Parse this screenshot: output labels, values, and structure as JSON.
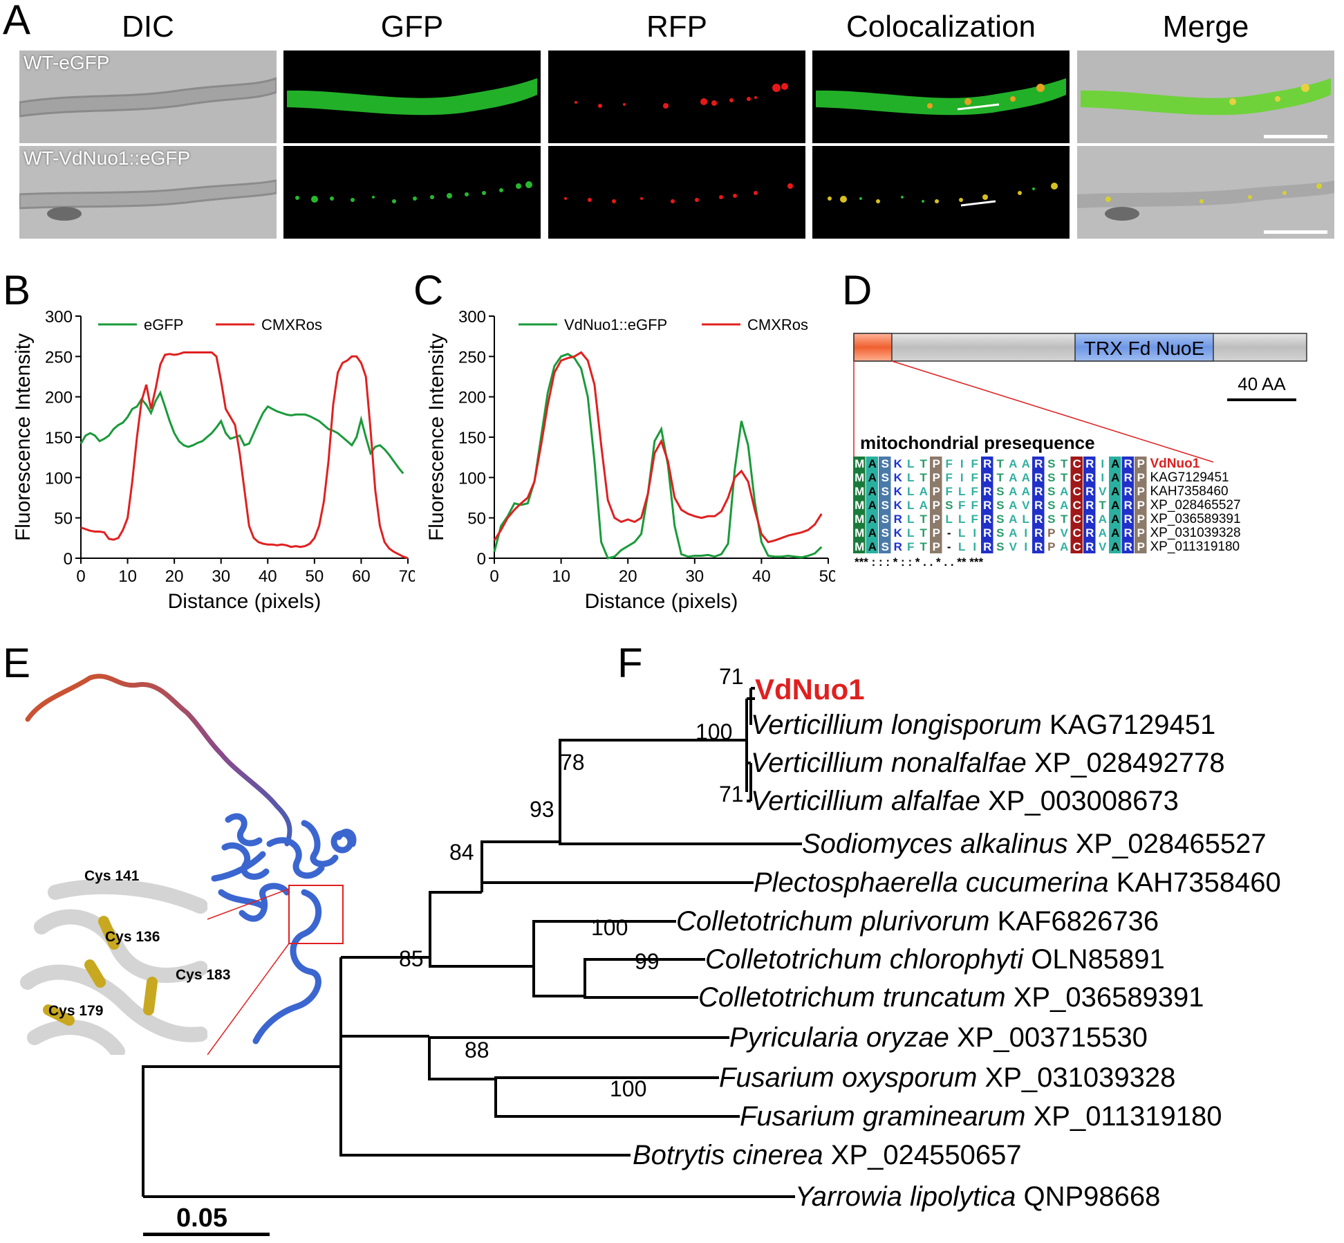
{
  "panels": {
    "A": "A",
    "B": "B",
    "C": "C",
    "D": "D",
    "E": "E",
    "F": "F"
  },
  "panel_a": {
    "columns": [
      "DIC",
      "GFP",
      "RFP",
      "Colocalization",
      "Merge"
    ],
    "rows": [
      "WT-eGFP",
      "WT-VdNuo1::eGFP"
    ]
  },
  "chart_data": [
    {
      "type": "line",
      "panel": "B",
      "xlabel": "Distance (pixels)",
      "ylabel": "Fluorescence Intensity",
      "xlim": [
        0,
        70
      ],
      "ylim": [
        0,
        300
      ],
      "xticks": [
        0,
        10,
        20,
        30,
        40,
        50,
        60,
        70
      ],
      "yticks": [
        0,
        50,
        100,
        150,
        200,
        250,
        300
      ],
      "legend_position": "top",
      "series": [
        {
          "name": "eGFP",
          "color": "#1a9a3a",
          "x": [
            0,
            1,
            2,
            3,
            4,
            5,
            6,
            7,
            8,
            9,
            10,
            11,
            12,
            13,
            14,
            15,
            16,
            17,
            18,
            19,
            20,
            21,
            22,
            23,
            24,
            25,
            26,
            27,
            28,
            29,
            30,
            31,
            32,
            33,
            34,
            35,
            36,
            37,
            38,
            39,
            40,
            41,
            42,
            43,
            44,
            45,
            46,
            47,
            48,
            49,
            50,
            51,
            52,
            53,
            54,
            55,
            56,
            57,
            58,
            59,
            60,
            61,
            62,
            63,
            64,
            65,
            66,
            67,
            68,
            69
          ],
          "values": [
            142,
            152,
            155,
            152,
            145,
            148,
            152,
            160,
            165,
            168,
            175,
            185,
            188,
            197,
            190,
            180,
            195,
            205,
            188,
            170,
            155,
            145,
            140,
            138,
            140,
            143,
            145,
            150,
            155,
            162,
            170,
            155,
            148,
            150,
            152,
            140,
            142,
            155,
            168,
            180,
            188,
            185,
            182,
            180,
            178,
            177,
            178,
            178,
            178,
            176,
            173,
            170,
            165,
            160,
            158,
            155,
            150,
            145,
            140,
            150,
            172,
            150,
            130,
            138,
            140,
            135,
            128,
            120,
            112,
            105
          ]
        },
        {
          "name": "CMXRos",
          "color": "#e02020",
          "x": [
            0,
            1,
            2,
            3,
            4,
            5,
            6,
            7,
            8,
            9,
            10,
            11,
            12,
            13,
            14,
            15,
            16,
            17,
            18,
            19,
            20,
            21,
            22,
            23,
            24,
            25,
            26,
            27,
            28,
            29,
            30,
            31,
            32,
            33,
            34,
            35,
            36,
            37,
            38,
            39,
            40,
            41,
            42,
            43,
            44,
            45,
            46,
            47,
            48,
            49,
            50,
            51,
            52,
            53,
            54,
            55,
            56,
            57,
            58,
            59,
            60,
            61,
            62,
            63,
            64,
            65,
            66,
            67,
            68,
            69,
            70
          ],
          "values": [
            38,
            36,
            34,
            33,
            33,
            32,
            24,
            23,
            25,
            35,
            50,
            95,
            150,
            195,
            215,
            185,
            210,
            240,
            252,
            253,
            252,
            253,
            255,
            255,
            255,
            255,
            255,
            255,
            255,
            250,
            220,
            185,
            175,
            165,
            130,
            85,
            40,
            25,
            20,
            18,
            17,
            17,
            16,
            17,
            16,
            14,
            15,
            14,
            15,
            18,
            25,
            40,
            70,
            120,
            190,
            230,
            242,
            245,
            250,
            250,
            242,
            225,
            160,
            85,
            40,
            20,
            12,
            8,
            5,
            2,
            0
          ]
        }
      ]
    },
    {
      "type": "line",
      "panel": "C",
      "xlabel": "Distance (pixels)",
      "ylabel": "Fluorescence Intensity",
      "xlim": [
        0,
        50
      ],
      "ylim": [
        0,
        300
      ],
      "xticks": [
        0,
        10,
        20,
        30,
        40,
        50
      ],
      "yticks": [
        0,
        50,
        100,
        150,
        200,
        250,
        300
      ],
      "legend_position": "top",
      "series": [
        {
          "name": "VdNuo1::eGFP",
          "color": "#1a9a3a",
          "x": [
            0,
            1,
            2,
            3,
            4,
            5,
            6,
            7,
            8,
            9,
            10,
            11,
            12,
            13,
            14,
            15,
            16,
            17,
            18,
            19,
            20,
            21,
            22,
            23,
            24,
            25,
            26,
            27,
            28,
            29,
            30,
            31,
            32,
            33,
            34,
            35,
            36,
            37,
            38,
            39,
            40,
            41,
            42,
            43,
            44,
            45,
            46,
            47,
            48,
            49
          ],
          "values": [
            8,
            40,
            52,
            68,
            66,
            68,
            95,
            150,
            205,
            238,
            250,
            253,
            248,
            235,
            200,
            120,
            20,
            0,
            2,
            10,
            15,
            20,
            30,
            80,
            145,
            160,
            115,
            40,
            5,
            2,
            3,
            3,
            4,
            2,
            5,
            18,
            110,
            170,
            140,
            70,
            20,
            3,
            2,
            2,
            3,
            2,
            1,
            3,
            6,
            14
          ]
        },
        {
          "name": "CMXRos",
          "color": "#e02020",
          "x": [
            0,
            1,
            2,
            3,
            4,
            5,
            6,
            7,
            8,
            9,
            10,
            11,
            12,
            13,
            14,
            15,
            16,
            17,
            18,
            19,
            20,
            21,
            22,
            23,
            24,
            25,
            26,
            27,
            28,
            29,
            30,
            31,
            32,
            33,
            34,
            35,
            36,
            37,
            38,
            39,
            40,
            41,
            42,
            43,
            44,
            45,
            46,
            47,
            48,
            49
          ],
          "values": [
            22,
            35,
            50,
            60,
            68,
            75,
            95,
            140,
            190,
            230,
            245,
            248,
            250,
            255,
            245,
            215,
            140,
            72,
            50,
            45,
            48,
            45,
            50,
            80,
            130,
            145,
            120,
            75,
            60,
            55,
            52,
            50,
            52,
            52,
            58,
            75,
            100,
            108,
            95,
            60,
            30,
            20,
            22,
            25,
            28,
            30,
            32,
            35,
            42,
            55
          ]
        }
      ]
    }
  ],
  "panel_d": {
    "domain": "TRX Fd NuoE",
    "scale": "40 AA",
    "presequence_title": "mitochondrial presequence",
    "alignment": [
      {
        "name": "VdNuo1",
        "seq": "MASKLTPFIFRTAARSTCRIARP"
      },
      {
        "name": "KAG7129451",
        "seq": "MASKLTPFIFRTAARSTCRIARP"
      },
      {
        "name": "KAH7358460",
        "seq": "MASKLAPFLFRSAARSACRVARP"
      },
      {
        "name": "XP_028465527",
        "seq": "MASKLAPSFFRSAVRSACRTARP"
      },
      {
        "name": "XP_036589391",
        "seq": "MASRLTPLLFRSALRSTCRAARP"
      },
      {
        "name": "XP_031039328",
        "seq": "MASKLTP-LIRSAIRPVCRAARP"
      },
      {
        "name": "XP_011319180",
        "seq": "MASRFTP-LIRSVIRPACRVARP"
      }
    ],
    "conservation": "*** : : : *  : : * . .   *  . .  **   ***"
  },
  "panel_e": {
    "labels": [
      "Cys 141",
      "Cys 136",
      "Cys 183",
      "Cys 179"
    ]
  },
  "panel_f": {
    "scale": "0.05",
    "taxa": [
      {
        "species": "",
        "accession": "VdNuo1"
      },
      {
        "species": "Verticillium longisporum",
        "accession": "KAG7129451"
      },
      {
        "species": "Verticillium nonalfalfae",
        "accession": "XP_028492778"
      },
      {
        "species": "Verticillium alfalfae",
        "accession": "XP_003008673"
      },
      {
        "species": "Sodiomyces alkalinus",
        "accession": "XP_028465527"
      },
      {
        "species": "Plectosphaerella cucumerina",
        "accession": "KAH7358460"
      },
      {
        "species": "Colletotrichum plurivorum",
        "accession": "KAF6826736"
      },
      {
        "species": "Colletotrichum chlorophyti",
        "accession": "OLN85891"
      },
      {
        "species": "Colletotrichum truncatum",
        "accession": "XP_036589391"
      },
      {
        "species": "Pyricularia oryzae",
        "accession": "XP_003715530"
      },
      {
        "species": "Fusarium oxysporum",
        "accession": "XP_031039328"
      },
      {
        "species": "Fusarium graminearum",
        "accession": "XP_011319180"
      },
      {
        "species": "Botrytis cinerea",
        "accession": "XP_024550657"
      },
      {
        "species": "Yarrowia lipolytica",
        "accession": "QNP98668"
      }
    ],
    "bootstraps": [
      "71",
      "100",
      "71",
      "78",
      "93",
      "84",
      "100",
      "99",
      "85",
      "88",
      "100"
    ]
  }
}
